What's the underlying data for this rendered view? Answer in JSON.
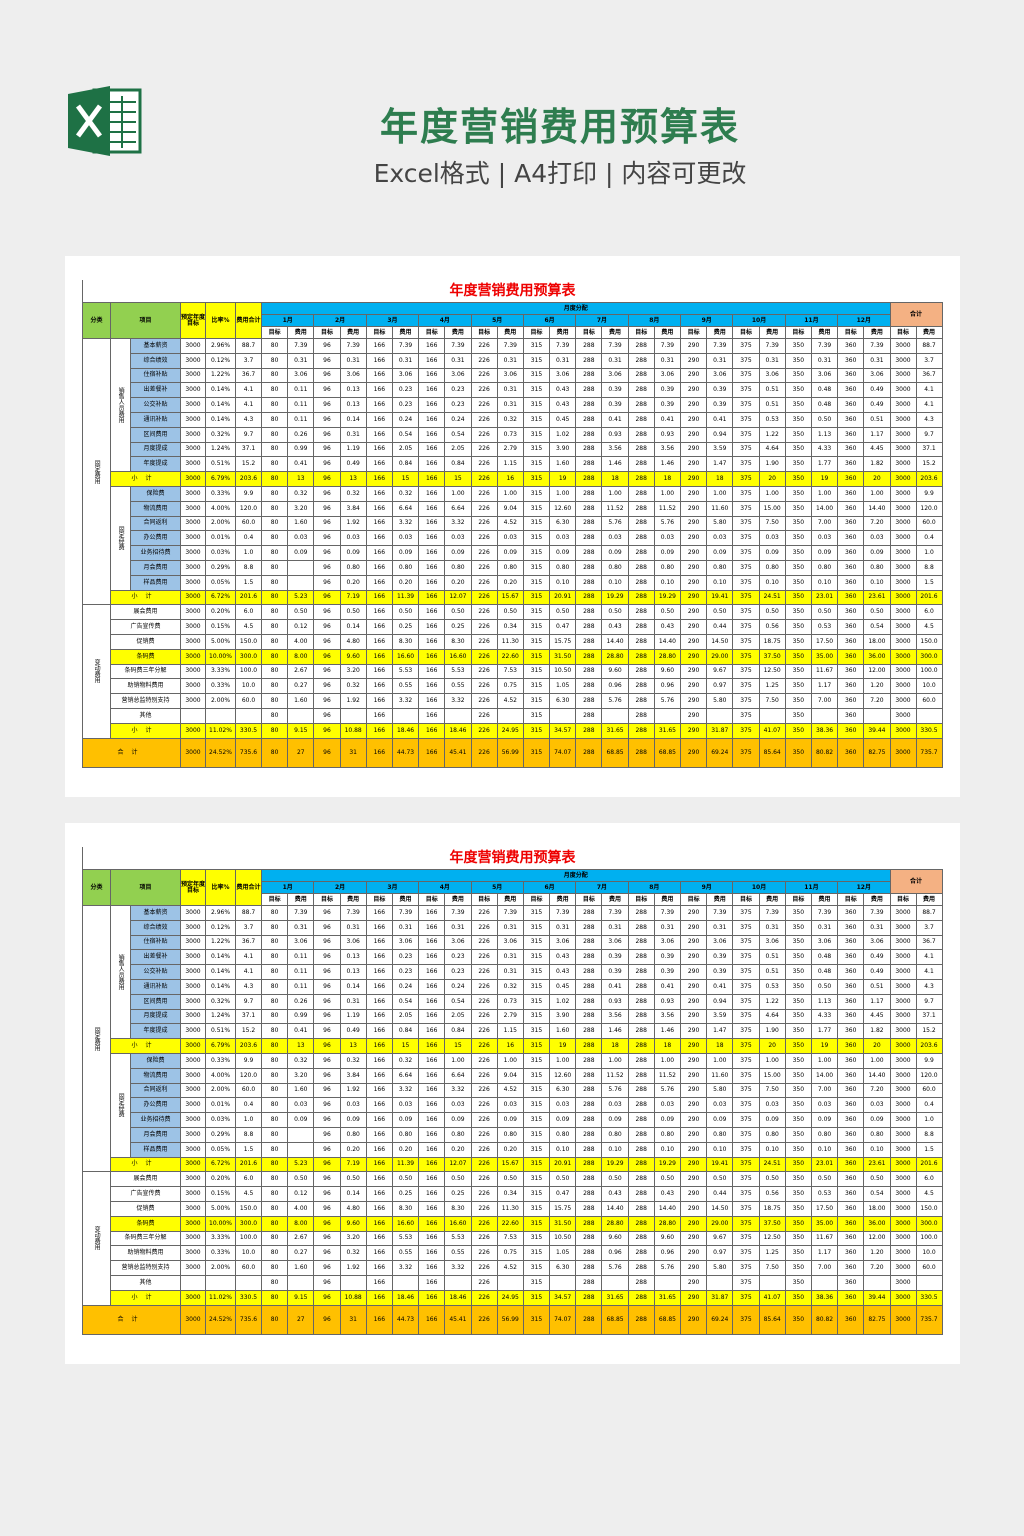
{
  "header": {
    "title": "年度营销费用预算表",
    "subtitle": "Excel格式 | A4打印 | 内容可更改"
  },
  "table": {
    "title": "年度营销费用预算表",
    "columns": {
      "category": "分类",
      "item": "项目",
      "target": "预定年度目标",
      "ratio": "比率%",
      "total": "费用合计",
      "monthly": "月度分配",
      "sum": "合计",
      "sub_target": "目标",
      "sub_expense": "费用"
    },
    "months": [
      {
        "name": "1月",
        "target": "80"
      },
      {
        "name": "2月",
        "target": "96"
      },
      {
        "name": "3月",
        "target": "166"
      },
      {
        "name": "4月",
        "target": "166"
      },
      {
        "name": "5月",
        "target": "226"
      },
      {
        "name": "6月",
        "target": "315"
      },
      {
        "name": "7月",
        "target": "288"
      },
      {
        "name": "8月",
        "target": "288"
      },
      {
        "name": "9月",
        "target": "290"
      },
      {
        "name": "10月",
        "target": "375"
      },
      {
        "name": "11月",
        "target": "350"
      },
      {
        "name": "12月",
        "target": "360"
      }
    ],
    "sections": [
      {
        "category": "固定费用",
        "groups": [
          {
            "name": "销售人员费用",
            "rows": [
              {
                "item": "基本薪资",
                "target": "3000",
                "ratio": "2.96%",
                "total": "88.7",
                "expenses": [
                  "7.39",
                  "7.39",
                  "7.39",
                  "7.39",
                  "7.39",
                  "7.39",
                  "7.39",
                  "7.39",
                  "7.39",
                  "7.39",
                  "7.39",
                  "7.39"
                ],
                "sum_target": "3000",
                "sum_expense": "88.7"
              },
              {
                "item": "综合绩效",
                "target": "3000",
                "ratio": "0.12%",
                "total": "3.7",
                "expenses": [
                  "0.31",
                  "0.31",
                  "0.31",
                  "0.31",
                  "0.31",
                  "0.31",
                  "0.31",
                  "0.31",
                  "0.31",
                  "0.31",
                  "0.31",
                  "0.31"
                ],
                "sum_target": "3000",
                "sum_expense": "3.7"
              },
              {
                "item": "住宿补贴",
                "target": "3000",
                "ratio": "1.22%",
                "total": "36.7",
                "expenses": [
                  "3.06",
                  "3.06",
                  "3.06",
                  "3.06",
                  "3.06",
                  "3.06",
                  "3.06",
                  "3.06",
                  "3.06",
                  "3.06",
                  "3.06",
                  "3.06"
                ],
                "sum_target": "3000",
                "sum_expense": "36.7"
              },
              {
                "item": "出差餐补",
                "target": "3000",
                "ratio": "0.14%",
                "total": "4.1",
                "expenses": [
                  "0.11",
                  "0.13",
                  "0.23",
                  "0.23",
                  "0.31",
                  "0.43",
                  "0.39",
                  "0.39",
                  "0.39",
                  "0.51",
                  "0.48",
                  "0.49"
                ],
                "sum_target": "3000",
                "sum_expense": "4.1"
              },
              {
                "item": "公交补贴",
                "target": "3000",
                "ratio": "0.14%",
                "total": "4.1",
                "expenses": [
                  "0.11",
                  "0.13",
                  "0.23",
                  "0.23",
                  "0.31",
                  "0.43",
                  "0.39",
                  "0.39",
                  "0.39",
                  "0.51",
                  "0.48",
                  "0.49"
                ],
                "sum_target": "3000",
                "sum_expense": "4.1"
              },
              {
                "item": "通讯补贴",
                "target": "3000",
                "ratio": "0.14%",
                "total": "4.3",
                "expenses": [
                  "0.11",
                  "0.14",
                  "0.24",
                  "0.24",
                  "0.32",
                  "0.45",
                  "0.41",
                  "0.41",
                  "0.41",
                  "0.53",
                  "0.50",
                  "0.51"
                ],
                "sum_target": "3000",
                "sum_expense": "4.3"
              },
              {
                "item": "区间费用",
                "target": "3000",
                "ratio": "0.32%",
                "total": "9.7",
                "expenses": [
                  "0.26",
                  "0.31",
                  "0.54",
                  "0.54",
                  "0.73",
                  "1.02",
                  "0.93",
                  "0.93",
                  "0.94",
                  "1.22",
                  "1.13",
                  "1.17"
                ],
                "sum_target": "3000",
                "sum_expense": "9.7"
              },
              {
                "item": "月度提成",
                "target": "3000",
                "ratio": "1.24%",
                "total": "37.1",
                "expenses": [
                  "0.99",
                  "1.19",
                  "2.05",
                  "2.05",
                  "2.79",
                  "3.90",
                  "3.56",
                  "3.56",
                  "3.59",
                  "4.64",
                  "4.33",
                  "4.45"
                ],
                "sum_target": "3000",
                "sum_expense": "37.1"
              },
              {
                "item": "年度提成",
                "target": "3000",
                "ratio": "0.51%",
                "total": "15.2",
                "expenses": [
                  "0.41",
                  "0.49",
                  "0.84",
                  "0.84",
                  "1.15",
                  "1.60",
                  "1.46",
                  "1.46",
                  "1.47",
                  "1.90",
                  "1.77",
                  "1.82"
                ],
                "sum_target": "3000",
                "sum_expense": "15.2"
              }
            ],
            "subtotal": {
              "label": "小计",
              "target": "3000",
              "ratio": "6.79%",
              "total": "203.6",
              "expenses": [
                "13",
                "13",
                "15",
                "15",
                "16",
                "19",
                "18",
                "18",
                "18",
                "20",
                "19",
                "20"
              ],
              "sum_target": "3000",
              "sum_expense": "203.6"
            }
          },
          {
            "name": "固定经费",
            "rows": [
              {
                "item": "保险费",
                "target": "3000",
                "ratio": "0.33%",
                "total": "9.9",
                "expenses": [
                  "0.32",
                  "0.32",
                  "0.32",
                  "1.00",
                  "1.00",
                  "1.00",
                  "1.00",
                  "1.00",
                  "1.00",
                  "1.00",
                  "1.00",
                  "1.00"
                ],
                "sum_target": "3000",
                "sum_expense": "9.9"
              },
              {
                "item": "物流费用",
                "target": "3000",
                "ratio": "4.00%",
                "total": "120.0",
                "expenses": [
                  "3.20",
                  "3.84",
                  "6.64",
                  "6.64",
                  "9.04",
                  "12.60",
                  "11.52",
                  "11.52",
                  "11.60",
                  "15.00",
                  "14.00",
                  "14.40"
                ],
                "sum_target": "3000",
                "sum_expense": "120.0"
              },
              {
                "item": "合同返利",
                "target": "3000",
                "ratio": "2.00%",
                "total": "60.0",
                "expenses": [
                  "1.60",
                  "1.92",
                  "3.32",
                  "3.32",
                  "4.52",
                  "6.30",
                  "5.76",
                  "5.76",
                  "5.80",
                  "7.50",
                  "7.00",
                  "7.20"
                ],
                "sum_target": "3000",
                "sum_expense": "60.0"
              },
              {
                "item": "办公费用",
                "target": "3000",
                "ratio": "0.01%",
                "total": "0.4",
                "expenses": [
                  "0.03",
                  "0.03",
                  "0.03",
                  "0.03",
                  "0.03",
                  "0.03",
                  "0.03",
                  "0.03",
                  "0.03",
                  "0.03",
                  "0.03",
                  "0.03"
                ],
                "sum_target": "3000",
                "sum_expense": "0.4"
              },
              {
                "item": "业务招待费",
                "target": "3000",
                "ratio": "0.03%",
                "total": "1.0",
                "expenses": [
                  "0.09",
                  "0.09",
                  "0.09",
                  "0.09",
                  "0.09",
                  "0.09",
                  "0.09",
                  "0.09",
                  "0.09",
                  "0.09",
                  "0.09",
                  "0.09"
                ],
                "sum_target": "3000",
                "sum_expense": "1.0"
              },
              {
                "item": "月会费用",
                "target": "3000",
                "ratio": "0.29%",
                "total": "8.8",
                "expenses": [
                  null,
                  "0.80",
                  "0.80",
                  "0.80",
                  "0.80",
                  "0.80",
                  "0.80",
                  "0.80",
                  "0.80",
                  "0.80",
                  "0.80",
                  "0.80"
                ],
                "sum_target": "3000",
                "sum_expense": "8.8"
              },
              {
                "item": "样品费用",
                "target": "3000",
                "ratio": "0.05%",
                "total": "1.5",
                "expenses": [
                  null,
                  "0.20",
                  "0.20",
                  "0.20",
                  "0.20",
                  "0.10",
                  "0.10",
                  "0.10",
                  "0.10",
                  "0.10",
                  "0.10",
                  "0.10"
                ],
                "sum_target": "3000",
                "sum_expense": "1.5"
              }
            ],
            "subtotal": {
              "label": "小计",
              "target": "3000",
              "ratio": "6.72%",
              "total": "201.6",
              "expenses": [
                "5.23",
                "7.19",
                "11.39",
                "12.07",
                "15.67",
                "20.91",
                "19.29",
                "19.29",
                "19.41",
                "24.51",
                "23.01",
                "23.61"
              ],
              "sum_target": "3000",
              "sum_expense": "201.6"
            }
          }
        ]
      },
      {
        "category": "变动费用",
        "groups": [
          {
            "rows": [
              {
                "item": "展会费用",
                "target": "3000",
                "ratio": "0.20%",
                "total": "6.0",
                "expenses": [
                  "0.50",
                  "0.50",
                  "0.50",
                  "0.50",
                  "0.50",
                  "0.50",
                  "0.50",
                  "0.50",
                  "0.50",
                  "0.50",
                  "0.50",
                  "0.50"
                ],
                "sum_target": "3000",
                "sum_expense": "6.0"
              },
              {
                "item": "广告宣传费",
                "target": "3000",
                "ratio": "0.15%",
                "total": "4.5",
                "expenses": [
                  "0.12",
                  "0.14",
                  "0.25",
                  "0.25",
                  "0.34",
                  "0.47",
                  "0.43",
                  "0.43",
                  "0.44",
                  "0.56",
                  "0.53",
                  "0.54"
                ],
                "sum_target": "3000",
                "sum_expense": "4.5"
              },
              {
                "item": "促销费",
                "target": "3000",
                "ratio": "5.00%",
                "total": "150.0",
                "expenses": [
                  "4.00",
                  "4.80",
                  "8.30",
                  "8.30",
                  "11.30",
                  "15.75",
                  "14.40",
                  "14.40",
                  "14.50",
                  "18.75",
                  "17.50",
                  "18.00"
                ],
                "sum_target": "3000",
                "sum_expense": "150.0"
              },
              {
                "item": "条码费",
                "color": "#ffff00",
                "target": "3000",
                "ratio": "10.00%",
                "total": "300.0",
                "expenses": [
                  "8.00",
                  "9.60",
                  "16.60",
                  "16.60",
                  "22.60",
                  "31.50",
                  "28.80",
                  "28.80",
                  "29.00",
                  "37.50",
                  "35.00",
                  "36.00"
                ],
                "sum_target": "3000",
                "sum_expense": "300.0"
              },
              {
                "item": "条码费三年分解",
                "target": "3000",
                "ratio": "3.33%",
                "total": "100.0",
                "expenses": [
                  "2.67",
                  "3.20",
                  "5.53",
                  "5.53",
                  "7.53",
                  "10.50",
                  "9.60",
                  "9.60",
                  "9.67",
                  "12.50",
                  "11.67",
                  "12.00"
                ],
                "sum_target": "3000",
                "sum_expense": "100.0"
              },
              {
                "item": "助销物料费用",
                "target": "3000",
                "ratio": "0.33%",
                "total": "10.0",
                "expenses": [
                  "0.27",
                  "0.32",
                  "0.55",
                  "0.55",
                  "0.75",
                  "1.05",
                  "0.96",
                  "0.96",
                  "0.97",
                  "1.25",
                  "1.17",
                  "1.20"
                ],
                "sum_target": "3000",
                "sum_expense": "10.0"
              },
              {
                "item": "营销总监特别支持",
                "target": "3000",
                "ratio": "2.00%",
                "total": "60.0",
                "expenses": [
                  "1.60",
                  "1.92",
                  "3.32",
                  "3.32",
                  "4.52",
                  "6.30",
                  "5.76",
                  "5.76",
                  "5.80",
                  "7.50",
                  "7.00",
                  "7.20"
                ],
                "sum_target": "3000",
                "sum_expense": "60.0"
              },
              {
                "item": "其他",
                "target": null,
                "ratio": null,
                "total": null,
                "expenses": [
                  null,
                  null,
                  null,
                  null,
                  null,
                  null,
                  null,
                  null,
                  null,
                  null,
                  null,
                  null
                ],
                "sum_target": "3000",
                "sum_expense": null
              }
            ],
            "subtotal": {
              "label": "小计",
              "target": "3000",
              "ratio": "11.02%",
              "total": "330.5",
              "expenses": [
                "9.15",
                "10.88",
                "18.46",
                "18.46",
                "24.95",
                "34.57",
                "31.65",
                "31.65",
                "31.87",
                "41.07",
                "38.36",
                "39.44"
              ],
              "sum_target": "3000",
              "sum_expense": "330.5"
            }
          }
        ]
      }
    ],
    "total": {
      "label": "合计",
      "target": "3000",
      "ratio": "24.52%",
      "total": "735.6",
      "expenses": [
        "27",
        "31",
        "44.73",
        "45.41",
        "56.99",
        "74.07",
        "68.85",
        "68.85",
        "69.24",
        "85.64",
        "80.82",
        "82.75"
      ],
      "sum_target": "3000",
      "sum_expense": "735.7"
    }
  }
}
